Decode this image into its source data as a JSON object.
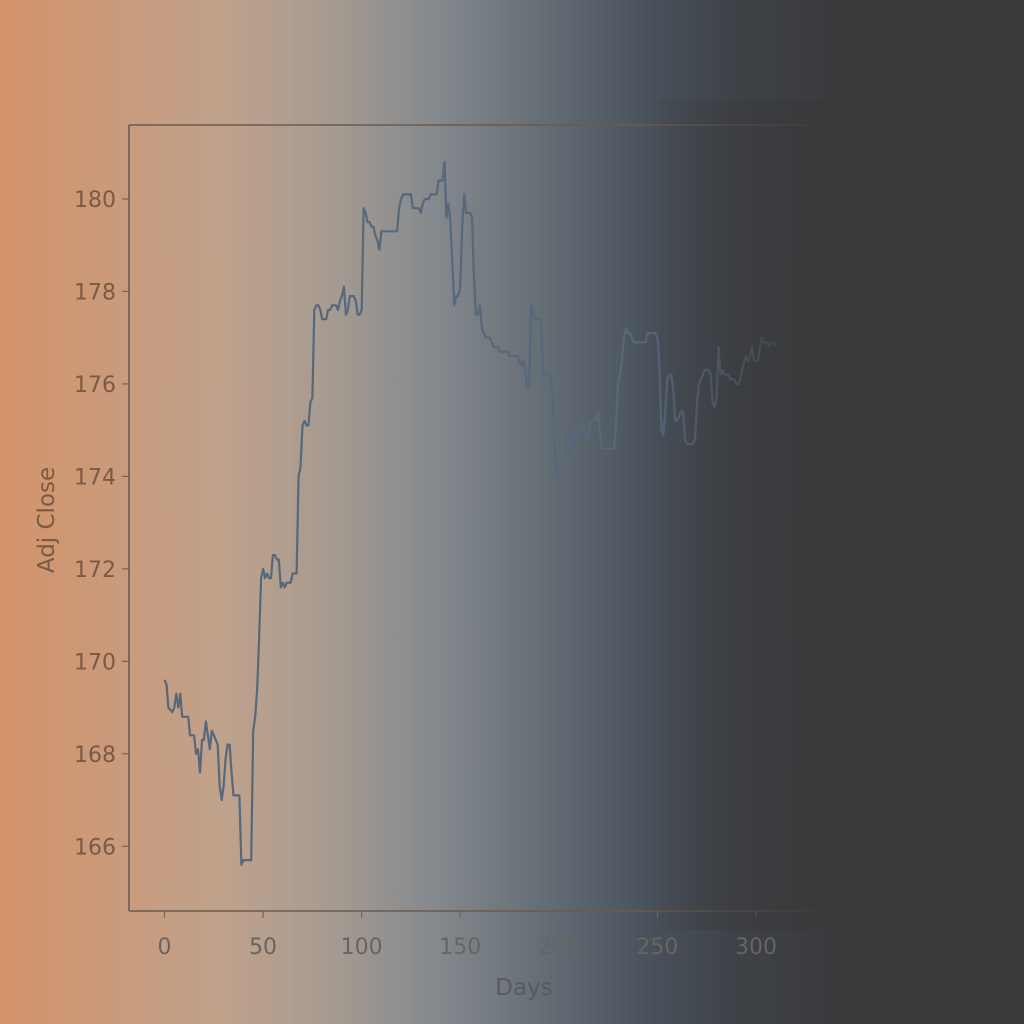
{
  "chart_data": {
    "type": "line",
    "title": "",
    "xlabel": "Days",
    "ylabel": "Adj Close",
    "xlim": [
      -18,
      335
    ],
    "ylim": [
      164.6,
      181.6
    ],
    "xticks": [
      0,
      50,
      100,
      150,
      200,
      250,
      300
    ],
    "yticks": [
      166,
      168,
      170,
      172,
      174,
      176,
      178,
      180
    ],
    "grid": false,
    "colors": {
      "line": "#56687a",
      "axis": "#6b5a4e",
      "ytick_text": "#7a5a44",
      "xtick_text": "#6a6460"
    },
    "series": [
      {
        "points": [
          [
            0,
            169.6
          ],
          [
            1,
            169.5
          ],
          [
            2,
            169.0
          ],
          [
            4,
            168.9
          ],
          [
            5,
            169.0
          ],
          [
            6,
            169.3
          ],
          [
            7,
            169.0
          ],
          [
            8,
            169.3
          ],
          [
            9,
            168.8
          ],
          [
            10,
            168.8
          ],
          [
            12,
            168.8
          ],
          [
            13,
            168.4
          ],
          [
            14,
            168.4
          ],
          [
            15,
            168.4
          ],
          [
            16,
            168.0
          ],
          [
            17,
            168.1
          ],
          [
            18,
            167.6
          ],
          [
            19,
            168.3
          ],
          [
            20,
            168.3
          ],
          [
            21,
            168.7
          ],
          [
            22,
            168.4
          ],
          [
            23,
            168.1
          ],
          [
            24,
            168.5
          ],
          [
            25,
            168.4
          ],
          [
            26,
            168.3
          ],
          [
            27,
            168.2
          ],
          [
            28,
            167.3
          ],
          [
            29,
            167.0
          ],
          [
            30,
            167.3
          ],
          [
            31,
            167.9
          ],
          [
            32,
            168.2
          ],
          [
            33,
            168.2
          ],
          [
            34,
            167.6
          ],
          [
            35,
            167.1
          ],
          [
            36,
            167.1
          ],
          [
            37,
            167.1
          ],
          [
            38,
            167.1
          ],
          [
            39,
            165.6
          ],
          [
            40,
            165.7
          ],
          [
            41,
            165.7
          ],
          [
            42,
            165.7
          ],
          [
            43,
            165.7
          ],
          [
            44,
            165.7
          ],
          [
            45,
            168.5
          ],
          [
            46,
            168.8
          ],
          [
            47,
            169.4
          ],
          [
            48,
            170.5
          ],
          [
            49,
            171.8
          ],
          [
            50,
            172.0
          ],
          [
            51,
            171.8
          ],
          [
            52,
            171.9
          ],
          [
            53,
            171.8
          ],
          [
            54,
            171.8
          ],
          [
            55,
            172.3
          ],
          [
            56,
            172.3
          ],
          [
            57,
            172.2
          ],
          [
            58,
            172.2
          ],
          [
            59,
            171.6
          ],
          [
            60,
            171.7
          ],
          [
            61,
            171.6
          ],
          [
            62,
            171.7
          ],
          [
            63,
            171.7
          ],
          [
            64,
            171.7
          ],
          [
            65,
            171.9
          ],
          [
            66,
            171.9
          ],
          [
            67,
            171.9
          ],
          [
            68,
            174.0
          ],
          [
            69,
            174.2
          ],
          [
            70,
            175.1
          ],
          [
            71,
            175.2
          ],
          [
            72,
            175.1
          ],
          [
            73,
            175.1
          ],
          [
            74,
            175.6
          ],
          [
            75,
            175.7
          ],
          [
            76,
            177.6
          ],
          [
            77,
            177.7
          ],
          [
            78,
            177.7
          ],
          [
            79,
            177.6
          ],
          [
            80,
            177.4
          ],
          [
            81,
            177.4
          ],
          [
            82,
            177.4
          ],
          [
            83,
            177.6
          ],
          [
            84,
            177.6
          ],
          [
            85,
            177.7
          ],
          [
            86,
            177.7
          ],
          [
            87,
            177.7
          ],
          [
            88,
            177.6
          ],
          [
            89,
            177.8
          ],
          [
            90,
            177.9
          ],
          [
            91,
            178.1
          ],
          [
            92,
            177.5
          ],
          [
            93,
            177.6
          ],
          [
            94,
            177.9
          ],
          [
            95,
            177.9
          ],
          [
            96,
            177.9
          ],
          [
            97,
            177.8
          ],
          [
            98,
            177.5
          ],
          [
            99,
            177.5
          ],
          [
            100,
            177.6
          ],
          [
            101,
            179.8
          ],
          [
            102,
            179.7
          ],
          [
            103,
            179.5
          ],
          [
            104,
            179.5
          ],
          [
            105,
            179.4
          ],
          [
            106,
            179.4
          ],
          [
            107,
            179.2
          ],
          [
            108,
            179.1
          ],
          [
            109,
            178.9
          ],
          [
            110,
            179.3
          ],
          [
            111,
            179.3
          ],
          [
            112,
            179.3
          ],
          [
            113,
            179.3
          ],
          [
            114,
            179.3
          ],
          [
            115,
            179.3
          ],
          [
            116,
            179.3
          ],
          [
            117,
            179.3
          ],
          [
            118,
            179.3
          ],
          [
            119,
            179.8
          ],
          [
            120,
            180.0
          ],
          [
            121,
            180.1
          ],
          [
            122,
            180.1
          ],
          [
            123,
            180.1
          ],
          [
            124,
            180.1
          ],
          [
            125,
            180.1
          ],
          [
            126,
            179.8
          ],
          [
            127,
            179.8
          ],
          [
            128,
            179.8
          ],
          [
            129,
            179.8
          ],
          [
            130,
            179.7
          ],
          [
            131,
            179.9
          ],
          [
            132,
            180.0
          ],
          [
            133,
            180.0
          ],
          [
            134,
            180.0
          ],
          [
            135,
            180.1
          ],
          [
            136,
            180.1
          ],
          [
            137,
            180.1
          ],
          [
            138,
            180.1
          ],
          [
            139,
            180.4
          ],
          [
            140,
            180.4
          ],
          [
            141,
            180.4
          ],
          [
            142,
            180.8
          ],
          [
            143,
            179.6
          ],
          [
            144,
            179.9
          ],
          [
            145,
            179.5
          ],
          [
            146,
            178.6
          ],
          [
            147,
            177.7
          ],
          [
            148,
            177.9
          ],
          [
            149,
            177.9
          ],
          [
            150,
            178.1
          ],
          [
            151,
            179.4
          ],
          [
            152,
            180.1
          ],
          [
            153,
            179.7
          ],
          [
            154,
            179.7
          ],
          [
            155,
            179.7
          ],
          [
            156,
            179.6
          ],
          [
            157,
            178.3
          ],
          [
            158,
            177.5
          ],
          [
            159,
            177.5
          ],
          [
            160,
            177.7
          ],
          [
            161,
            177.2
          ],
          [
            162,
            177.1
          ],
          [
            163,
            177.0
          ],
          [
            164,
            177.0
          ],
          [
            165,
            177.0
          ],
          [
            166,
            176.9
          ],
          [
            167,
            176.8
          ],
          [
            168,
            176.8
          ],
          [
            169,
            176.8
          ],
          [
            170,
            176.7
          ],
          [
            171,
            176.7
          ],
          [
            172,
            176.7
          ],
          [
            173,
            176.7
          ],
          [
            174,
            176.7
          ],
          [
            175,
            176.6
          ],
          [
            176,
            176.6
          ],
          [
            177,
            176.6
          ],
          [
            178,
            176.6
          ],
          [
            179,
            176.6
          ],
          [
            180,
            176.5
          ],
          [
            181,
            176.4
          ],
          [
            182,
            176.5
          ],
          [
            183,
            176.3
          ],
          [
            184,
            175.9
          ],
          [
            185,
            176.0
          ],
          [
            186,
            177.7
          ],
          [
            187,
            177.5
          ],
          [
            188,
            177.4
          ],
          [
            189,
            177.4
          ],
          [
            190,
            177.4
          ],
          [
            191,
            177.4
          ],
          [
            192,
            176.2
          ],
          [
            193,
            176.2
          ],
          [
            194,
            176.2
          ],
          [
            195,
            176.2
          ],
          [
            196,
            176.1
          ],
          [
            197,
            175.7
          ],
          [
            198,
            174.5
          ],
          [
            199,
            174.0
          ],
          [
            200,
            174.2
          ],
          [
            201,
            174.2
          ],
          [
            202,
            174.4
          ],
          [
            203,
            174.4
          ],
          [
            204,
            174.8
          ],
          [
            205,
            175.0
          ],
          [
            206,
            174.6
          ],
          [
            207,
            174.9
          ],
          [
            208,
            175.0
          ],
          [
            209,
            175.0
          ],
          [
            210,
            174.9
          ],
          [
            211,
            174.9
          ],
          [
            212,
            175.2
          ],
          [
            213,
            175.0
          ],
          [
            214,
            174.9
          ],
          [
            215,
            174.8
          ],
          [
            216,
            175.2
          ],
          [
            217,
            175.2
          ],
          [
            218,
            175.3
          ],
          [
            219,
            175.2
          ],
          [
            220,
            175.4
          ],
          [
            221,
            174.9
          ],
          [
            222,
            174.6
          ],
          [
            223,
            174.6
          ],
          [
            224,
            174.6
          ],
          [
            225,
            174.6
          ],
          [
            226,
            174.6
          ],
          [
            227,
            174.6
          ],
          [
            228,
            174.6
          ],
          [
            229,
            175.1
          ],
          [
            230,
            176.0
          ],
          [
            231,
            176.2
          ],
          [
            232,
            176.5
          ],
          [
            233,
            177.0
          ],
          [
            234,
            177.2
          ],
          [
            235,
            177.1
          ],
          [
            236,
            177.1
          ],
          [
            237,
            177.0
          ],
          [
            238,
            176.9
          ],
          [
            239,
            176.9
          ],
          [
            240,
            176.9
          ],
          [
            241,
            176.9
          ],
          [
            242,
            176.9
          ],
          [
            243,
            176.9
          ],
          [
            244,
            176.9
          ],
          [
            245,
            177.1
          ],
          [
            246,
            177.1
          ],
          [
            247,
            177.1
          ],
          [
            248,
            177.1
          ],
          [
            249,
            177.1
          ],
          [
            250,
            177.0
          ],
          [
            251,
            176.4
          ],
          [
            252,
            175.0
          ],
          [
            253,
            174.9
          ],
          [
            254,
            175.4
          ],
          [
            255,
            176.1
          ],
          [
            256,
            176.2
          ],
          [
            257,
            176.2
          ],
          [
            258,
            175.9
          ],
          [
            259,
            175.2
          ],
          [
            260,
            175.2
          ],
          [
            261,
            175.3
          ],
          [
            262,
            175.4
          ],
          [
            263,
            175.4
          ],
          [
            264,
            174.8
          ],
          [
            265,
            174.7
          ],
          [
            266,
            174.7
          ],
          [
            267,
            174.7
          ],
          [
            268,
            174.7
          ],
          [
            269,
            174.8
          ],
          [
            270,
            175.5
          ],
          [
            271,
            176.0
          ],
          [
            272,
            176.1
          ],
          [
            273,
            176.2
          ],
          [
            274,
            176.3
          ],
          [
            275,
            176.3
          ],
          [
            276,
            176.3
          ],
          [
            277,
            176.2
          ],
          [
            278,
            175.6
          ],
          [
            279,
            175.5
          ],
          [
            280,
            175.7
          ],
          [
            281,
            176.8
          ],
          [
            282,
            176.2
          ],
          [
            283,
            176.3
          ],
          [
            284,
            176.2
          ],
          [
            285,
            176.2
          ],
          [
            286,
            176.2
          ],
          [
            287,
            176.1
          ],
          [
            288,
            176.1
          ],
          [
            289,
            176.1
          ],
          [
            290,
            176.0
          ],
          [
            291,
            176.0
          ],
          [
            292,
            176.1
          ],
          [
            293,
            176.3
          ],
          [
            294,
            176.5
          ],
          [
            295,
            176.6
          ],
          [
            296,
            176.5
          ],
          [
            297,
            176.6
          ],
          [
            298,
            176.8
          ],
          [
            299,
            176.5
          ],
          [
            300,
            176.5
          ],
          [
            301,
            176.5
          ],
          [
            302,
            176.8
          ],
          [
            303,
            177.0
          ],
          [
            304,
            176.9
          ],
          [
            305,
            176.9
          ],
          [
            306,
            176.9
          ],
          [
            307,
            176.8
          ],
          [
            308,
            176.9
          ],
          [
            309,
            176.9
          ],
          [
            310,
            176.8
          ]
        ]
      }
    ]
  }
}
